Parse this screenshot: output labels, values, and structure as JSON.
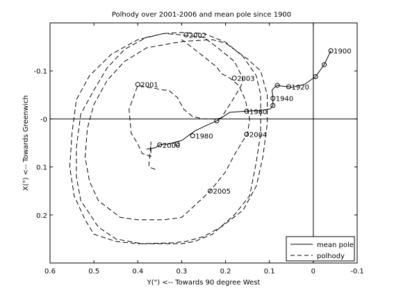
{
  "chart_data": {
    "type": "line",
    "title": "Polhody over 2001-2006 and mean pole since 1900",
    "xlabel": "Y(\") <-- Towards 90 degree West",
    "ylabel": "X(\") <-- Towards Greenwich",
    "xlim": [
      0.6,
      -0.1
    ],
    "ylim": [
      -0.2,
      0.3
    ],
    "x_ticks": [
      0.6,
      0.5,
      0.4,
      0.3,
      0.2,
      0.1,
      0,
      -0.1
    ],
    "x_tick_labels": [
      "0.6",
      "0.5",
      "0.4",
      "0.3",
      "0.2",
      "0.1",
      "0",
      "-0.1"
    ],
    "y_ticks": [
      -0.1,
      0,
      0.1,
      0.2
    ],
    "y_tick_labels": [
      "-0.1",
      "-0",
      "0.1",
      "0.2"
    ],
    "reference_lines": {
      "x": 0,
      "y": 0
    },
    "legend_position": "bottom-right",
    "series": [
      {
        "name": "mean pole",
        "style": "solid",
        "color": "#000000",
        "points": [
          [
            -0.04,
            -0.142
          ],
          [
            -0.025,
            -0.113
          ],
          [
            -0.005,
            -0.088
          ],
          [
            0.02,
            -0.072
          ],
          [
            0.048,
            -0.066
          ],
          [
            0.056,
            -0.067
          ],
          [
            0.07,
            -0.068
          ],
          [
            0.082,
            -0.07
          ],
          [
            0.088,
            -0.066
          ],
          [
            0.094,
            -0.06
          ],
          [
            0.092,
            -0.043
          ],
          [
            0.092,
            -0.028
          ],
          [
            0.098,
            -0.021
          ],
          [
            0.116,
            -0.018
          ],
          [
            0.152,
            -0.016
          ],
          [
            0.19,
            -0.014
          ],
          [
            0.2,
            -0.008
          ],
          [
            0.22,
            0.004
          ],
          [
            0.24,
            0.012
          ],
          [
            0.27,
            0.025
          ],
          [
            0.3,
            0.045
          ],
          [
            0.33,
            0.052
          ],
          [
            0.35,
            0.054
          ],
          [
            0.36,
            0.06
          ],
          [
            0.38,
            0.063
          ]
        ]
      },
      {
        "name": "polhody",
        "style": "dashed",
        "color": "#000000",
        "points": [
          [
            0.36,
            0.105
          ],
          [
            0.375,
            0.1
          ],
          [
            0.37,
            0.052
          ],
          [
            0.37,
            0.048
          ],
          [
            0.37,
            0.078
          ],
          [
            0.39,
            0.072
          ],
          [
            0.4,
            0.052
          ],
          [
            0.415,
            0.03
          ],
          [
            0.42,
            -0.02
          ],
          [
            0.4,
            -0.07
          ],
          [
            0.34,
            -0.06
          ],
          [
            0.33,
            -0.06
          ],
          [
            0.31,
            -0.045
          ],
          [
            0.295,
            -0.02
          ],
          [
            0.275,
            -0.005
          ],
          [
            0.25,
            0.0
          ],
          [
            0.22,
            0.0
          ],
          [
            0.21,
            -0.002
          ],
          [
            0.18,
            -0.045
          ],
          [
            0.165,
            -0.068
          ],
          [
            0.16,
            -0.084
          ],
          [
            0.18,
            -0.12
          ],
          [
            0.22,
            -0.15
          ],
          [
            0.25,
            -0.17
          ],
          [
            0.3,
            -0.175
          ],
          [
            0.34,
            -0.178
          ],
          [
            0.38,
            -0.17
          ],
          [
            0.43,
            -0.145
          ],
          [
            0.47,
            -0.106
          ],
          [
            0.5,
            -0.06
          ],
          [
            0.53,
            -0.01
          ],
          [
            0.54,
            0.06
          ],
          [
            0.54,
            0.12
          ],
          [
            0.53,
            0.17
          ],
          [
            0.49,
            0.225
          ],
          [
            0.45,
            0.25
          ],
          [
            0.39,
            0.26
          ],
          [
            0.3,
            0.26
          ],
          [
            0.27,
            0.255
          ],
          [
            0.23,
            0.24
          ],
          [
            0.18,
            0.2
          ],
          [
            0.145,
            0.16
          ],
          [
            0.13,
            0.09
          ],
          [
            0.12,
            0.03
          ],
          [
            0.12,
            -0.05
          ],
          [
            0.13,
            -0.09
          ],
          [
            0.16,
            -0.13
          ],
          [
            0.2,
            -0.16
          ],
          [
            0.25,
            -0.178
          ],
          [
            0.3,
            -0.18
          ],
          [
            0.34,
            -0.178
          ],
          [
            0.4,
            -0.165
          ],
          [
            0.46,
            -0.135
          ],
          [
            0.51,
            -0.09
          ],
          [
            0.54,
            -0.04
          ],
          [
            0.55,
            0.03
          ],
          [
            0.555,
            0.1
          ],
          [
            0.545,
            0.16
          ],
          [
            0.52,
            0.21
          ],
          [
            0.5,
            0.24
          ],
          [
            0.45,
            0.255
          ],
          [
            0.4,
            0.26
          ],
          [
            0.32,
            0.258
          ],
          [
            0.29,
            0.255
          ],
          [
            0.25,
            0.245
          ],
          [
            0.21,
            0.225
          ],
          [
            0.16,
            0.19
          ],
          [
            0.13,
            0.14
          ],
          [
            0.115,
            0.08
          ],
          [
            0.105,
            0.01
          ],
          [
            0.105,
            -0.05
          ],
          [
            0.12,
            -0.1
          ],
          [
            0.15,
            -0.125
          ],
          [
            0.2,
            -0.158
          ],
          [
            0.23,
            -0.165
          ],
          [
            0.29,
            -0.162
          ],
          [
            0.32,
            -0.158
          ],
          [
            0.38,
            -0.148
          ],
          [
            0.43,
            -0.12
          ],
          [
            0.47,
            -0.08
          ],
          [
            0.5,
            -0.03
          ],
          [
            0.515,
            0.02
          ],
          [
            0.52,
            0.08
          ],
          [
            0.51,
            0.13
          ],
          [
            0.49,
            0.17
          ],
          [
            0.44,
            0.205
          ],
          [
            0.4,
            0.21
          ],
          [
            0.34,
            0.21
          ],
          [
            0.3,
            0.205
          ],
          [
            0.27,
            0.18
          ],
          [
            0.235,
            0.15
          ],
          [
            0.2,
            0.11
          ],
          [
            0.18,
            0.075
          ],
          [
            0.16,
            0.045
          ],
          [
            0.15,
            0.032
          ],
          [
            0.145,
            0.0
          ],
          [
            0.155,
            -0.04
          ],
          [
            0.17,
            -0.07
          ],
          [
            0.19,
            -0.085
          ],
          [
            0.21,
            -0.095
          ],
          [
            0.22,
            -0.108
          ],
          [
            0.25,
            -0.13
          ],
          [
            0.285,
            -0.155
          ],
          [
            0.3,
            -0.165
          ]
        ]
      }
    ],
    "annotations": [
      {
        "text": "1900",
        "x": -0.04,
        "y": -0.142
      },
      {
        "text": "1920",
        "x": 0.056,
        "y": -0.067
      },
      {
        "text": "1940",
        "x": 0.092,
        "y": -0.043
      },
      {
        "text": "1960",
        "x": 0.152,
        "y": -0.016
      },
      {
        "text": "1980",
        "x": 0.275,
        "y": 0.035
      },
      {
        "text": "2000",
        "x": 0.35,
        "y": 0.054
      },
      {
        "text": "2001",
        "x": 0.4,
        "y": -0.072
      },
      {
        "text": "2002",
        "x": 0.29,
        "y": -0.175
      },
      {
        "text": "2003",
        "x": 0.18,
        "y": -0.085
      },
      {
        "text": "2004",
        "x": 0.152,
        "y": 0.032
      },
      {
        "text": "2005",
        "x": 0.235,
        "y": 0.15
      }
    ],
    "markers": [
      {
        "x": -0.04,
        "y": -0.142
      },
      {
        "x": -0.025,
        "y": -0.113
      },
      {
        "x": -0.005,
        "y": -0.088
      },
      {
        "x": 0.056,
        "y": -0.067
      },
      {
        "x": 0.082,
        "y": -0.07
      },
      {
        "x": 0.092,
        "y": -0.043
      },
      {
        "x": 0.092,
        "y": -0.028
      },
      {
        "x": 0.152,
        "y": -0.016
      },
      {
        "x": 0.22,
        "y": 0.004
      },
      {
        "x": 0.275,
        "y": 0.035
      },
      {
        "x": 0.31,
        "y": 0.052
      },
      {
        "x": 0.35,
        "y": 0.054
      },
      {
        "x": 0.4,
        "y": -0.072
      },
      {
        "x": 0.29,
        "y": -0.175
      },
      {
        "x": 0.18,
        "y": -0.085
      },
      {
        "x": 0.152,
        "y": 0.032
      },
      {
        "x": 0.235,
        "y": 0.15
      }
    ]
  }
}
